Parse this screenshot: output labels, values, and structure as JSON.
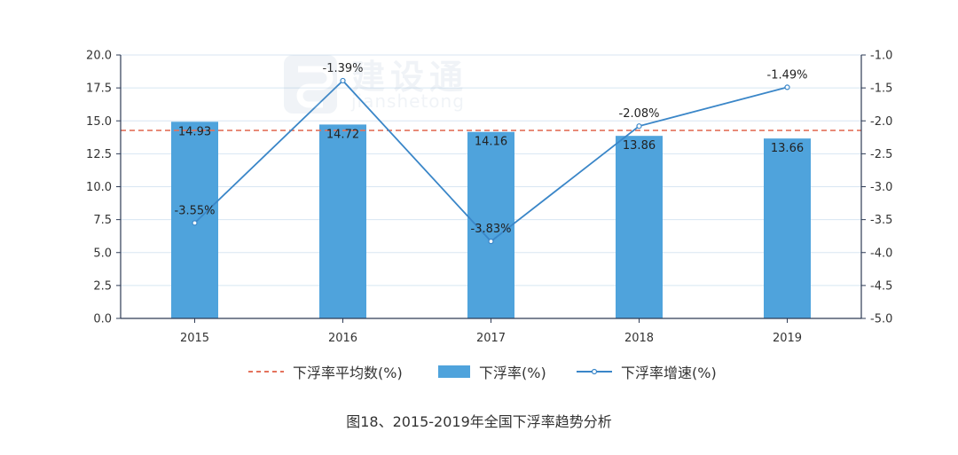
{
  "watermark": {
    "main": "建设通",
    "sub": "jianshetong"
  },
  "legend": {
    "avg_label": "下浮率平均数(%)",
    "bar_label": "下浮率(%)",
    "line_label": "下浮率增速(%)"
  },
  "caption": "图18、2015-2019年全国下浮率趋势分析",
  "colors": {
    "bar": "#4fa3dc",
    "line": "#3a86c8",
    "avg": "#e4725c",
    "axis": "#2e3b55",
    "grid": "#d8e6f2"
  },
  "chart_data": {
    "type": "bar",
    "categories": [
      "2015",
      "2016",
      "2017",
      "2018",
      "2019"
    ],
    "series": [
      {
        "name": "下浮率(%)",
        "kind": "bar",
        "axis": "left",
        "values": [
          14.93,
          14.72,
          14.16,
          13.86,
          13.66
        ],
        "labels": [
          "14.93",
          "14.72",
          "14.16",
          "13.86",
          "13.66"
        ]
      },
      {
        "name": "下浮率增速(%)",
        "kind": "line",
        "axis": "right",
        "values": [
          -3.55,
          -1.39,
          -3.83,
          -2.08,
          -1.49
        ],
        "labels": [
          "-3.55%",
          "-1.39%",
          "-3.83%",
          "-2.08%",
          "-1.49%"
        ]
      },
      {
        "name": "下浮率平均数(%)",
        "kind": "hline",
        "axis": "left",
        "value": 14.27
      }
    ],
    "y_left": {
      "range": [
        0,
        20
      ],
      "ticks": [
        "0.0",
        "2.5",
        "5.0",
        "7.5",
        "10.0",
        "12.5",
        "15.0",
        "17.5",
        "20.0"
      ]
    },
    "y_right": {
      "range": [
        -5,
        -1
      ],
      "ticks": [
        "-5.0",
        "-4.5",
        "-4.0",
        "-3.5",
        "-3.0",
        "-2.5",
        "-2.0",
        "-1.5",
        "-1.0"
      ]
    },
    "grid": true,
    "legend_position": "bottom"
  }
}
